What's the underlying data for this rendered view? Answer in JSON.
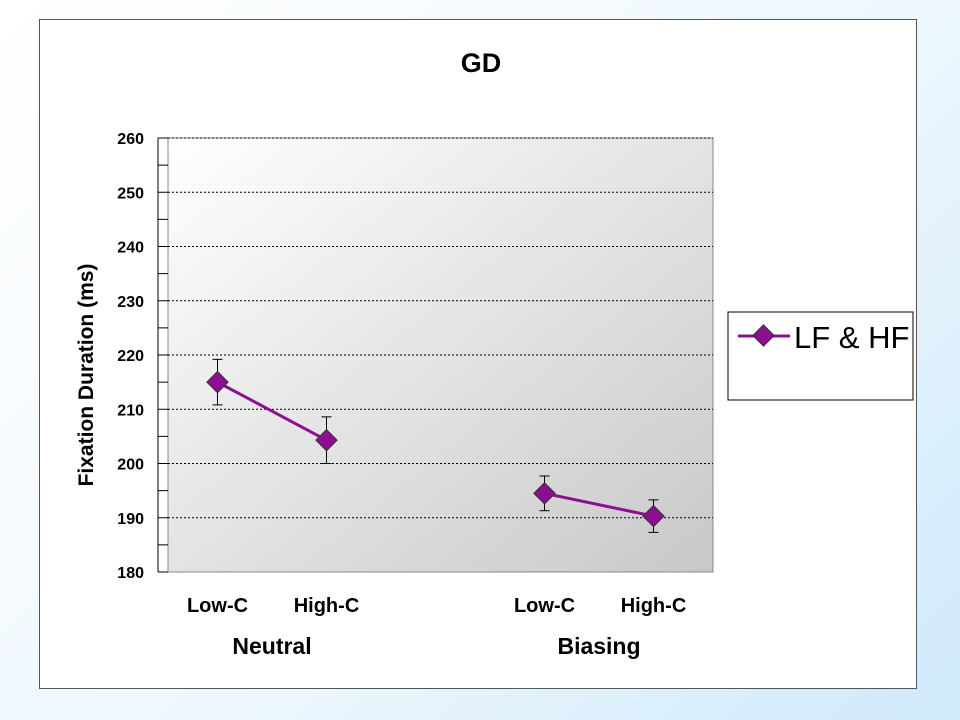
{
  "chart_data": {
    "type": "line",
    "title": "GD",
    "ylabel": "Fixation Duration (ms)",
    "xlabel": "",
    "ylim": [
      180,
      260
    ],
    "ytick_step": 10,
    "yticks": [
      "180",
      "190",
      "200",
      "210",
      "220",
      "230",
      "240",
      "250",
      "260"
    ],
    "grid": "horizontal dashed",
    "legend_position": "right",
    "categories": [
      "Low-C",
      "High-C",
      "Low-C",
      "High-C"
    ],
    "groups": [
      {
        "label": "Neutral",
        "categories": [
          "Low-C",
          "High-C"
        ]
      },
      {
        "label": "Biasing",
        "categories": [
          "Low-C",
          "High-C"
        ]
      }
    ],
    "series": [
      {
        "name": "LF & HF",
        "color": "#8b0f8f",
        "segments": [
          {
            "group": "Neutral",
            "values": [
              215,
              204.3
            ],
            "errors": [
              4.2,
              4.3
            ]
          },
          {
            "group": "Biasing",
            "values": [
              194.5,
              190.3
            ],
            "errors": [
              3.2,
              3.0
            ]
          }
        ]
      }
    ]
  }
}
